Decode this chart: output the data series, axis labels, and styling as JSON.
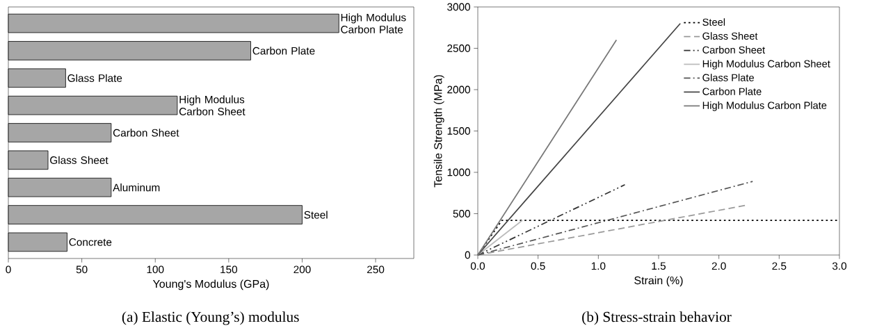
{
  "chart_data": [
    {
      "type": "bar",
      "orientation": "horizontal",
      "title": "(a) Elastic (Young’s) modulus",
      "xlabel": "Young's Modulus (GPa)",
      "categories": [
        null,
        null,
        null,
        null,
        null,
        null,
        null,
        null,
        null
      ],
      "annotations": [
        {
          "text": "High Modulus Carbon Plate",
          "x": 225
        },
        {
          "text": "Carbon Plate",
          "x": 165
        },
        {
          "text": "Glass Plate",
          "x": 39
        },
        {
          "text": "High Modulus Carbon Sheet",
          "x": 115
        },
        {
          "text": "Carbon Sheet",
          "x": 70
        },
        {
          "text": "Glass Sheet",
          "x": 27
        },
        {
          "text": "Aluminum",
          "x": 70
        },
        {
          "text": "Steel",
          "x": 200
        },
        {
          "text": "Concrete",
          "x": 40
        }
      ],
      "values": [
        225,
        165,
        39,
        115,
        70,
        27,
        70,
        200,
        40
      ],
      "color": "#a6a6a6",
      "xlim": [
        0,
        276
      ],
      "xticks": [
        0,
        50,
        100,
        150,
        200,
        250
      ],
      "tick_labels": "x",
      "grid": false
    },
    {
      "type": "line",
      "title": "(b) Stress-strain behavior",
      "xlabel": "Strain (%)",
      "ylabel": "Tensile Strength (MPa)",
      "xlim": [
        0,
        3
      ],
      "xticks": [
        {
          "value": 0,
          "label": "0.0"
        },
        0.5,
        {
          "value": 1,
          "label": "1.0"
        },
        1.5,
        {
          "value": 2,
          "label": "2.0"
        },
        2.5,
        {
          "value": 3,
          "label": "3.0"
        }
      ],
      "ylim": [
        0,
        3000
      ],
      "yticks": [
        0,
        500,
        1000,
        1500,
        2000,
        2500,
        3000
      ],
      "grid": false,
      "legend": "top right",
      "marker": "none",
      "series": [
        {
          "name": "Steel",
          "color": "#000000",
          "line_style": "dotted",
          "x": [
            0,
            0.2,
            3.0
          ],
          "values": [
            0,
            420,
            420
          ]
        },
        {
          "name": "Glass Sheet",
          "color": "#999999",
          "line_style": "dashed",
          "x": [
            0,
            2.22
          ],
          "values": [
            0,
            600
          ]
        },
        {
          "name": "Carbon Sheet",
          "color": "#333333",
          "line_style": "dashdotdot",
          "x": [
            0,
            1.22
          ],
          "values": [
            0,
            850
          ]
        },
        {
          "name": "High Modulus Carbon Sheet",
          "color": "#bbbbbb",
          "line_style": "solid",
          "x": [
            0,
            0.37
          ],
          "values": [
            0,
            420
          ]
        },
        {
          "name": "Glass Plate",
          "color": "#555555",
          "line_style": "dashdot",
          "x": [
            0,
            2.28
          ],
          "values": [
            0,
            890
          ]
        },
        {
          "name": "Carbon Plate",
          "color": "#444444",
          "line_style": "solid",
          "x": [
            0,
            1.68
          ],
          "values": [
            0,
            2800
          ]
        },
        {
          "name": "High Modulus Carbon Plate",
          "color": "#777777",
          "line_style": "solid",
          "x": [
            0,
            1.15
          ],
          "values": [
            0,
            2600
          ]
        }
      ]
    }
  ]
}
